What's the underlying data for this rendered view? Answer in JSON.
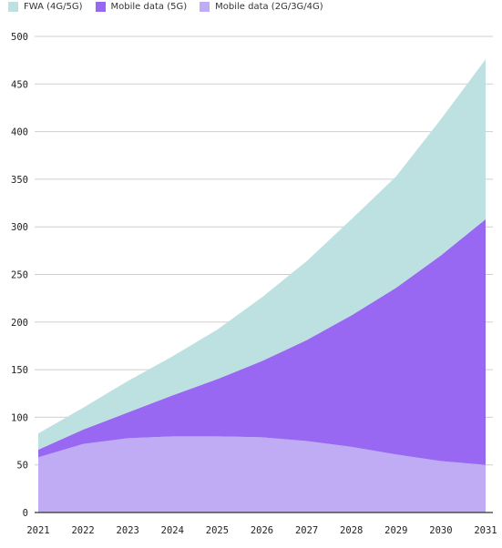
{
  "chart_data": {
    "type": "area",
    "stacked": true,
    "x": [
      "2021",
      "2022",
      "2023",
      "2024",
      "2025",
      "2026",
      "2027",
      "2028",
      "2029",
      "2030",
      "2031"
    ],
    "series": [
      {
        "name": "Mobile data (2G/3G/4G)",
        "color": "#c0acf5",
        "values": [
          58,
          72,
          78,
          80,
          80,
          79,
          75,
          69,
          61,
          54,
          50
        ]
      },
      {
        "name": "Mobile data (5G)",
        "color": "#9868f3",
        "values": [
          8,
          15,
          27,
          43,
          60,
          80,
          106,
          138,
          175,
          216,
          258
        ]
      },
      {
        "name": "FWA (4G/5G)",
        "color": "#bde1e1",
        "values": [
          17,
          23,
          33,
          41,
          52,
          67,
          83,
          101,
          117,
          143,
          168
        ]
      }
    ],
    "ylim": [
      0,
      500
    ],
    "yticks": [
      "0",
      "50",
      "100",
      "150",
      "200",
      "250",
      "300",
      "350",
      "400",
      "450",
      "500"
    ],
    "grid": true,
    "legend_position": "top-left",
    "title": "",
    "xlabel": "",
    "ylabel": ""
  }
}
